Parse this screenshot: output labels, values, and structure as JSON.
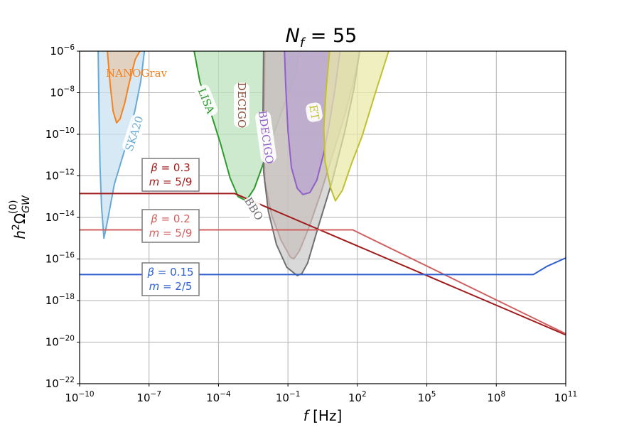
{
  "chart_data": {
    "type": "line",
    "title": "N_f = 55",
    "title_parts": {
      "main": "N",
      "sub": "f",
      "rest": " = 55"
    },
    "xlabel": "f [Hz]",
    "xlabel_parts": {
      "var": "f",
      "unit": " [Hz]"
    },
    "ylabel": "h²Ω_GW^(0)",
    "ylabel_parts": {
      "main": "h",
      "sq": "2",
      "omega": "Ω",
      "sub": "GW",
      "sup": "(0)"
    },
    "x_scale": "log",
    "y_scale": "log",
    "xlim": [
      1e-10,
      100000000000.0
    ],
    "ylim": [
      1e-22,
      1e-06
    ],
    "grid": true,
    "x_ticks": [
      {
        "base": "10",
        "exp": "−10",
        "value_exp": -10
      },
      {
        "base": "10",
        "exp": "−7",
        "value_exp": -7
      },
      {
        "base": "10",
        "exp": "−4",
        "value_exp": -4
      },
      {
        "base": "10",
        "exp": "−1",
        "value_exp": -1
      },
      {
        "base": "10",
        "exp": "2",
        "value_exp": 2
      },
      {
        "base": "10",
        "exp": "5",
        "value_exp": 5
      },
      {
        "base": "10",
        "exp": "8",
        "value_exp": 8
      },
      {
        "base": "10",
        "exp": "11",
        "value_exp": 11
      }
    ],
    "y_ticks": [
      {
        "base": "10",
        "exp": "−22",
        "value_exp": -22
      },
      {
        "base": "10",
        "exp": "−20",
        "value_exp": -20
      },
      {
        "base": "10",
        "exp": "−18",
        "value_exp": -18
      },
      {
        "base": "10",
        "exp": "−16",
        "value_exp": -16
      },
      {
        "base": "10",
        "exp": "−14",
        "value_exp": -14
      },
      {
        "base": "10",
        "exp": "−12",
        "value_exp": -12
      },
      {
        "base": "10",
        "exp": "−10",
        "value_exp": -10
      },
      {
        "base": "10",
        "exp": "−8",
        "value_exp": -8
      },
      {
        "base": "10",
        "exp": "−6",
        "value_exp": -6
      }
    ],
    "series": [
      {
        "label_lines": [
          "β = 0.3",
          "m = 5/9"
        ],
        "color": "#a01c1c",
        "log10_points": [
          [
            -10,
            -12.85
          ],
          [
            -3.3,
            -12.85
          ],
          [
            11,
            -19.65
          ]
        ]
      },
      {
        "label_lines": [
          "β = 0.2",
          "m = 5/9"
        ],
        "color": "#d06060",
        "log10_points": [
          [
            -10,
            -14.6
          ],
          [
            1.8,
            -14.6
          ],
          [
            11,
            -19.6
          ]
        ]
      },
      {
        "label_lines": [
          "β = 0.15",
          "m = 2/5"
        ],
        "color": "#3060d0",
        "log10_points": [
          [
            -10,
            -16.75
          ],
          [
            9.6,
            -16.75
          ],
          [
            10.2,
            -16.35
          ],
          [
            11,
            -15.95
          ]
        ]
      }
    ],
    "sensitivity_curves": [
      {
        "name": "SKA20",
        "color": "#6aaad2",
        "fill": "#c9e1f2",
        "log10_points": [
          [
            -9.2,
            -6
          ],
          [
            -9.16,
            -9
          ],
          [
            -9.12,
            -11.5
          ],
          [
            -9.05,
            -13.5
          ],
          [
            -8.95,
            -15
          ],
          [
            -8.8,
            -14.2
          ],
          [
            -8.5,
            -12.4
          ],
          [
            -8.2,
            -11.3
          ],
          [
            -7.9,
            -10.2
          ],
          [
            -7.6,
            -8.8
          ],
          [
            -7.35,
            -7.4
          ],
          [
            -7.2,
            -6
          ]
        ]
      },
      {
        "name": "NANOGrav",
        "color": "#f5821f",
        "fill": "#e5c8ac",
        "log10_points": [
          [
            -8.8,
            -6
          ],
          [
            -8.68,
            -7.6
          ],
          [
            -8.55,
            -8.9
          ],
          [
            -8.4,
            -9.45
          ],
          [
            -8.25,
            -9.25
          ],
          [
            -8.05,
            -8.5
          ],
          [
            -7.85,
            -7.5
          ],
          [
            -7.6,
            -6.4
          ],
          [
            -7.4,
            -6
          ]
        ]
      },
      {
        "name": "LISA",
        "color": "#2c9a2c",
        "fill": "#bbe2bb",
        "log10_points": [
          [
            -5.05,
            -6
          ],
          [
            -4.8,
            -7.5
          ],
          [
            -4.35,
            -8.9
          ],
          [
            -3.9,
            -10.5
          ],
          [
            -3.5,
            -12.1
          ],
          [
            -3.15,
            -13.0
          ],
          [
            -2.8,
            -13.2
          ],
          [
            -2.45,
            -12.6
          ],
          [
            -2.0,
            -11.2
          ],
          [
            -1.4,
            -9.3
          ],
          [
            -0.7,
            -7.2
          ],
          [
            -0.5,
            -6
          ]
        ]
      },
      {
        "name": "DECIGO",
        "color": "#8b4a3c",
        "fill": "#c4a59a",
        "log10_points": [
          [
            -2.0,
            -6
          ],
          [
            -2.02,
            -8.5
          ],
          [
            -2.04,
            -10.5
          ],
          [
            -2.0,
            -12.3
          ],
          [
            -1.7,
            -13.9
          ],
          [
            -1.3,
            -15.1
          ],
          [
            -0.9,
            -15.9
          ],
          [
            -0.75,
            -16.0
          ],
          [
            -0.5,
            -15.6
          ],
          [
            -0.1,
            -14.5
          ],
          [
            0.4,
            -12.9
          ],
          [
            0.9,
            -11.1
          ],
          [
            1.45,
            -9.1
          ],
          [
            1.85,
            -7.4
          ],
          [
            2.1,
            -6
          ]
        ]
      },
      {
        "name": "BDECIGO",
        "color": "#9060c8",
        "fill": "#b9a3d0",
        "log10_points": [
          [
            -1.15,
            -6
          ],
          [
            -1.1,
            -7.6
          ],
          [
            -1.0,
            -9.8
          ],
          [
            -0.85,
            -11.6
          ],
          [
            -0.6,
            -12.6
          ],
          [
            -0.35,
            -12.9
          ],
          [
            -0.05,
            -12.8
          ],
          [
            0.25,
            -12.2
          ],
          [
            0.55,
            -10.9
          ],
          [
            0.8,
            -9.4
          ],
          [
            1.05,
            -7.7
          ],
          [
            1.25,
            -6
          ]
        ]
      },
      {
        "name": "BBO",
        "color": "#707070",
        "fill": "#cbcbcb",
        "log10_points": [
          [
            -2.05,
            -6
          ],
          [
            -2.08,
            -9
          ],
          [
            -2.05,
            -11.8
          ],
          [
            -1.85,
            -13.7
          ],
          [
            -1.5,
            -15.3
          ],
          [
            -1.05,
            -16.4
          ],
          [
            -0.6,
            -16.8
          ],
          [
            -0.4,
            -16.7
          ],
          [
            -0.15,
            -16.2
          ],
          [
            0.35,
            -14.3
          ],
          [
            0.9,
            -12.3
          ],
          [
            1.45,
            -9.9
          ],
          [
            1.85,
            -7.8
          ],
          [
            2.1,
            -6
          ]
        ]
      },
      {
        "name": "ET",
        "color": "#c0c030",
        "fill": "#e9e9a8",
        "log10_points": [
          [
            0.8,
            -6
          ],
          [
            0.65,
            -7.8
          ],
          [
            0.55,
            -9.7
          ],
          [
            0.6,
            -11.3
          ],
          [
            0.85,
            -12.6
          ],
          [
            1.05,
            -13.2
          ],
          [
            1.35,
            -12.7
          ],
          [
            1.75,
            -11.4
          ],
          [
            2.2,
            -10.1
          ],
          [
            2.75,
            -8.1
          ],
          [
            3.35,
            -6
          ]
        ]
      }
    ]
  }
}
